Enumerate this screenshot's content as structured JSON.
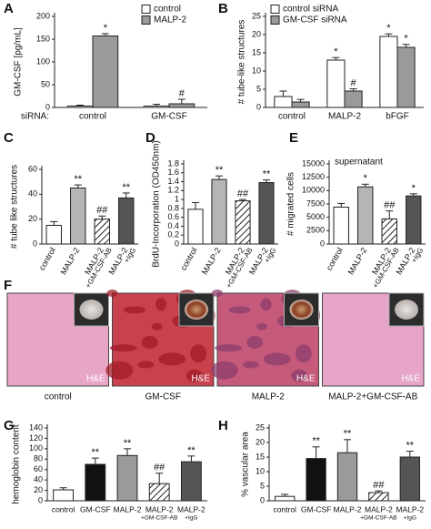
{
  "chart_data": [
    {
      "type": "grouped-bar",
      "panel": "A",
      "ylabel": "GM-CSF [pg/mL]",
      "category_axis_label": "siRNA:",
      "categories": [
        [
          "control"
        ],
        [
          "GM-CSF"
        ]
      ],
      "ylim": [
        0,
        200
      ],
      "yticks": [
        0,
        50,
        100,
        150,
        200
      ],
      "legend": "upper right",
      "series": [
        {
          "name": "control",
          "color": "#ffffff",
          "values": [
            3,
            3
          ],
          "errors": [
            2,
            4
          ],
          "annotations": [
            null,
            null
          ]
        },
        {
          "name": "MALP-2",
          "color": "#9a9a9a",
          "values": [
            157,
            8
          ],
          "errors": [
            5,
            10
          ],
          "annotations": [
            "*",
            "#"
          ]
        }
      ]
    },
    {
      "type": "grouped-bar",
      "panel": "B",
      "ylabel": "# tube-like structures",
      "categories": [
        [
          "control"
        ],
        [
          "MALP-2"
        ],
        [
          "bFGF"
        ]
      ],
      "ylim": [
        0,
        25
      ],
      "yticks": [
        0,
        5,
        10,
        15,
        20,
        25
      ],
      "legend": "upper left",
      "series": [
        {
          "name": "control siRNA",
          "color": "#ffffff",
          "values": [
            3,
            13,
            19.5
          ],
          "errors": [
            1.5,
            0.7,
            0.7
          ],
          "annotations": [
            null,
            "*",
            "*"
          ]
        },
        {
          "name": "GM-CSF siRNA",
          "color": "#9a9a9a",
          "values": [
            1.5,
            4.5,
            16.5
          ],
          "errors": [
            0.7,
            0.6,
            0.8
          ],
          "annotations": [
            null,
            "#",
            "*"
          ]
        }
      ]
    },
    {
      "type": "bar",
      "panel": "C",
      "ylabel": "# tube like structures",
      "label_style": "rotated",
      "categories": [
        [
          "control"
        ],
        [
          "MALP-2"
        ],
        [
          "MALP-2",
          "+GM-CSF-AB"
        ],
        [
          "MALP-2",
          "+IgG"
        ]
      ],
      "values": [
        15,
        45,
        20,
        37
      ],
      "errors": [
        3,
        2.5,
        2.5,
        4
      ],
      "annotations": [
        null,
        "**",
        "##",
        "**"
      ],
      "colors": [
        "#ffffff",
        "#b5b5b5",
        "hatch",
        "#555555"
      ],
      "ylim": [
        0,
        60
      ],
      "yticks": [
        0,
        20,
        40,
        60
      ]
    },
    {
      "type": "bar",
      "panel": "D",
      "ylabel": "BrdU-Incorporation (OD450nm)",
      "label_style": "rotated",
      "categories": [
        [
          "control"
        ],
        [
          "MALP-2"
        ],
        [
          "MALP-2",
          "+GM-CSF-AB"
        ],
        [
          "MALP-2",
          "+IgG"
        ]
      ],
      "values": [
        0.78,
        1.45,
        0.97,
        1.38
      ],
      "errors": [
        0.15,
        0.08,
        0.03,
        0.06
      ],
      "annotations": [
        null,
        "**",
        "##",
        "**"
      ],
      "colors": [
        "#ffffff",
        "#b5b5b5",
        "hatch",
        "#555555"
      ],
      "ylim": [
        0,
        1.8
      ],
      "yticks": [
        0,
        0.2,
        0.4,
        0.6,
        0.8,
        1,
        1.2,
        1.4,
        1.6,
        1.8
      ]
    },
    {
      "type": "bar",
      "panel": "E",
      "ylabel": "# migrated cells",
      "annotation": "supernatant",
      "label_style": "rotated",
      "categories": [
        [
          "control"
        ],
        [
          "MALP-2"
        ],
        [
          "MALP-2",
          "+GM-CSF-AB"
        ],
        [
          "MALP-2",
          "+IgG"
        ]
      ],
      "values": [
        6900,
        10700,
        4700,
        9000
      ],
      "errors": [
        700,
        500,
        1500,
        400
      ],
      "annotations": [
        null,
        "*",
        "##",
        "*"
      ],
      "colors": [
        "#ffffff",
        "#b5b5b5",
        "hatch",
        "#555555"
      ],
      "ylim": [
        0,
        15000
      ],
      "yticks": [
        0,
        2500,
        5000,
        7500,
        10000,
        12500,
        15000
      ]
    },
    {
      "type": "images",
      "panel": "F",
      "images": [
        {
          "label": "control",
          "stain": "H&E"
        },
        {
          "label": "GM-CSF",
          "stain": "H&E"
        },
        {
          "label": "MALP-2",
          "stain": "H&E"
        },
        {
          "label": "MALP-2+GM-CSF-AB",
          "stain": "H&E"
        }
      ]
    },
    {
      "type": "bar",
      "panel": "G",
      "ylabel": "hemoglobin content",
      "label_style": "stacked",
      "categories": [
        [
          "control"
        ],
        [
          "GM-CSF"
        ],
        [
          "MALP-2"
        ],
        [
          "MALP-2",
          "+GM-CSF-AB"
        ],
        [
          "MALP-2",
          "+IgG"
        ]
      ],
      "values": [
        21,
        70,
        87,
        33,
        75
      ],
      "errors": [
        4,
        12,
        13,
        20,
        11
      ],
      "annotations": [
        null,
        "**",
        "**",
        "##",
        "**"
      ],
      "colors": [
        "#ffffff",
        "#111111",
        "#9a9a9a",
        "hatch",
        "#555555"
      ],
      "ylim": [
        0,
        140
      ],
      "yticks": [
        0,
        20,
        40,
        60,
        80,
        100,
        120,
        140
      ]
    },
    {
      "type": "bar",
      "panel": "H",
      "ylabel": "% vascular area",
      "label_style": "stacked",
      "categories": [
        [
          "control"
        ],
        [
          "GM-CSF"
        ],
        [
          "MALP-2"
        ],
        [
          "MALP-2",
          "+GM-CSF-AB"
        ],
        [
          "MALP-2",
          "+IgG"
        ]
      ],
      "values": [
        1.5,
        14.5,
        16.5,
        2.8,
        15
      ],
      "errors": [
        0.7,
        4,
        4.5,
        0.6,
        2
      ],
      "annotations": [
        null,
        "**",
        "**",
        "##",
        "**"
      ],
      "colors": [
        "#ffffff",
        "#111111",
        "#9a9a9a",
        "hatch",
        "#555555"
      ],
      "ylim": [
        0,
        25
      ],
      "yticks": [
        0,
        5,
        10,
        15,
        20,
        25
      ]
    }
  ]
}
